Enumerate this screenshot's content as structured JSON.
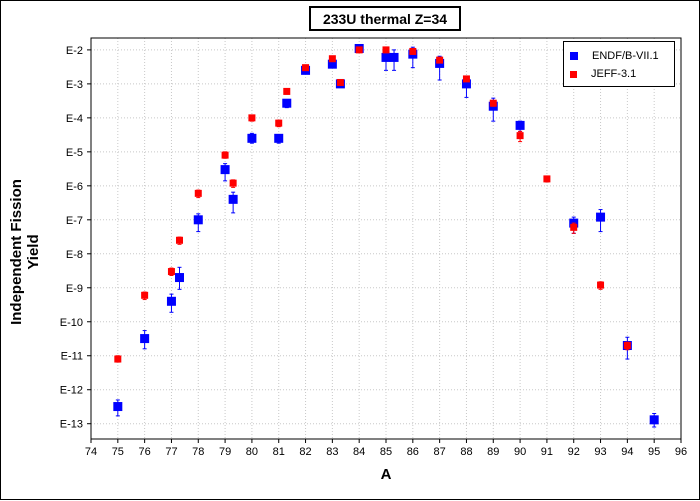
{
  "chart_data": {
    "type": "scatter",
    "title": "233U thermal Z=34",
    "xlabel": "A",
    "ylabel": "Independent Fission Yield",
    "xlim": [
      74,
      96
    ],
    "x_ticks": [
      74,
      75,
      76,
      77,
      78,
      79,
      80,
      81,
      82,
      83,
      84,
      85,
      86,
      87,
      88,
      89,
      90,
      91,
      92,
      93,
      94,
      95,
      96
    ],
    "y_scale": "log",
    "ylim": [
      1e-13,
      0.01
    ],
    "y_ticks": [
      {
        "label": "E-2",
        "value": 0.01
      },
      {
        "label": "E-3",
        "value": 0.001
      },
      {
        "label": "E-4",
        "value": 0.0001
      },
      {
        "label": "E-5",
        "value": 1e-05
      },
      {
        "label": "E-6",
        "value": 1e-06
      },
      {
        "label": "E-7",
        "value": 1e-07
      },
      {
        "label": "E-8",
        "value": 1e-08
      },
      {
        "label": "E-9",
        "value": 1e-09
      },
      {
        "label": "E-10",
        "value": 1e-10
      },
      {
        "label": "E-11",
        "value": 1e-11
      },
      {
        "label": "E-12",
        "value": 1e-12
      },
      {
        "label": "E-13",
        "value": 1e-13
      }
    ],
    "grid": true,
    "legend_position": "top-right",
    "series": [
      {
        "name": "ENDF/B-VII.1",
        "color": "#0000ff",
        "marker": "square",
        "points": [
          {
            "x": 75.0,
            "y": 3.2e-13,
            "lo": 1.7e-13,
            "hi": 5e-13
          },
          {
            "x": 76.0,
            "y": 3.2e-11,
            "lo": 1.6e-11,
            "hi": 5.5e-11
          },
          {
            "x": 77.0,
            "y": 4e-10,
            "lo": 1.9e-10,
            "hi": 6.5e-10
          },
          {
            "x": 77.3,
            "y": 2e-09,
            "lo": 9e-10,
            "hi": 4e-09
          },
          {
            "x": 78.0,
            "y": 1e-07,
            "lo": 4.5e-08,
            "hi": 1.5e-07
          },
          {
            "x": 79.0,
            "y": 3e-06,
            "lo": 1.4e-06,
            "hi": 4.5e-06
          },
          {
            "x": 79.3,
            "y": 4e-07,
            "lo": 1.6e-07,
            "hi": 6.5e-07
          },
          {
            "x": 80.0,
            "y": 2.5e-05,
            "lo": 1.8e-05,
            "hi": 3.5e-05
          },
          {
            "x": 81.0,
            "y": 2.5e-05,
            "lo": 1.8e-05,
            "hi": 3.2e-05
          },
          {
            "x": 81.3,
            "y": 0.00027,
            "lo": 0.0002,
            "hi": 0.00034
          },
          {
            "x": 82.0,
            "y": 0.0025,
            "lo": 0.002,
            "hi": 0.003
          },
          {
            "x": 83.0,
            "y": 0.0038,
            "lo": 0.003,
            "hi": 0.0046
          },
          {
            "x": 83.3,
            "y": 0.001,
            "lo": 0.0008,
            "hi": 0.0012
          },
          {
            "x": 84.0,
            "y": 0.011,
            "lo": 0.009,
            "hi": 0.013
          },
          {
            "x": 85.0,
            "y": 0.006,
            "lo": 0.0025,
            "hi": 0.01
          },
          {
            "x": 85.3,
            "y": 0.006,
            "lo": 0.0025,
            "hi": 0.01
          },
          {
            "x": 86.0,
            "y": 0.0075,
            "lo": 0.003,
            "hi": 0.012
          },
          {
            "x": 87.0,
            "y": 0.004,
            "lo": 0.0013,
            "hi": 0.0065
          },
          {
            "x": 88.0,
            "y": 0.001,
            "lo": 0.0004,
            "hi": 0.0016
          },
          {
            "x": 89.0,
            "y": 0.00022,
            "lo": 8e-05,
            "hi": 0.00038
          },
          {
            "x": 90.0,
            "y": 6e-05,
            "lo": 4e-05,
            "hi": 8e-05
          },
          {
            "x": 92.0,
            "y": 8e-08,
            "lo": 4e-08,
            "hi": 1.2e-07
          },
          {
            "x": 93.0,
            "y": 1.2e-07,
            "lo": 4.5e-08,
            "hi": 2e-07
          },
          {
            "x": 94.0,
            "y": 2e-11,
            "lo": 8e-12,
            "hi": 3.5e-11
          },
          {
            "x": 95.0,
            "y": 1.3e-13,
            "lo": 8e-14,
            "hi": 2e-13
          }
        ]
      },
      {
        "name": "JEFF-3.1",
        "color": "#ff0000",
        "marker": "square",
        "points": [
          {
            "x": 75.0,
            "y": 8e-12,
            "lo": 6.5e-12,
            "hi": 1e-11
          },
          {
            "x": 76.0,
            "y": 6e-10,
            "lo": 4.5e-10,
            "hi": 7.5e-10
          },
          {
            "x": 77.0,
            "y": 3e-09,
            "lo": 2.3e-09,
            "hi": 3.8e-09
          },
          {
            "x": 77.3,
            "y": 2.5e-08,
            "lo": 1.9e-08,
            "hi": 3.1e-08
          },
          {
            "x": 78.0,
            "y": 6e-07,
            "lo": 4.5e-07,
            "hi": 7.5e-07
          },
          {
            "x": 79.0,
            "y": 8e-06,
            "lo": 6.5e-06,
            "hi": 1e-05
          },
          {
            "x": 79.3,
            "y": 1.2e-06,
            "lo": 9e-07,
            "hi": 1.5e-06
          },
          {
            "x": 80.0,
            "y": 0.0001,
            "lo": 8e-05,
            "hi": 0.00012
          },
          {
            "x": 81.0,
            "y": 7e-05,
            "lo": 5.5e-05,
            "hi": 8.5e-05
          },
          {
            "x": 81.3,
            "y": 0.0006,
            "lo": 0.0005,
            "hi": 0.0007
          },
          {
            "x": 82.0,
            "y": 0.003,
            "lo": 0.0026,
            "hi": 0.0034
          },
          {
            "x": 83.0,
            "y": 0.0055,
            "lo": 0.005,
            "hi": 0.006
          },
          {
            "x": 83.3,
            "y": 0.0011,
            "lo": 0.00095,
            "hi": 0.00125
          },
          {
            "x": 84.0,
            "y": 0.01,
            "lo": 0.009,
            "hi": 0.011
          },
          {
            "x": 85.0,
            "y": 0.01,
            "lo": 0.009,
            "hi": 0.011
          },
          {
            "x": 86.0,
            "y": 0.009,
            "lo": 0.008,
            "hi": 0.01
          },
          {
            "x": 87.0,
            "y": 0.005,
            "lo": 0.0043,
            "hi": 0.0057
          },
          {
            "x": 88.0,
            "y": 0.0014,
            "lo": 0.0012,
            "hi": 0.0016
          },
          {
            "x": 89.0,
            "y": 0.00027,
            "lo": 0.00022,
            "hi": 0.00032
          },
          {
            "x": 90.0,
            "y": 3e-05,
            "lo": 2e-05,
            "hi": 4e-05
          },
          {
            "x": 91.0,
            "y": 1.6e-06,
            "lo": 1.3e-06,
            "hi": 1.9e-06
          },
          {
            "x": 92.0,
            "y": 6e-08,
            "lo": 4e-08,
            "hi": 8e-08
          },
          {
            "x": 93.0,
            "y": 1.2e-09,
            "lo": 9e-10,
            "hi": 1.5e-09
          },
          {
            "x": 94.0,
            "y": 2e-11,
            "lo": 1.5e-11,
            "hi": 2.5e-11
          }
        ]
      }
    ]
  }
}
